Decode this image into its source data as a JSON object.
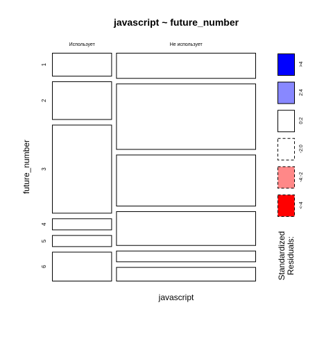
{
  "chart_data": {
    "type": "mosaic",
    "title": "javascript ~ future_number",
    "xlabel": "javascript",
    "ylabel": "future_number",
    "columns": [
      "Использует",
      "Не использует"
    ],
    "rows": [
      "1",
      "2",
      "3",
      "4",
      "5",
      "6"
    ],
    "column_shares": [
      0.3,
      0.7
    ],
    "row_shares": {
      "Использует": [
        0.08,
        0.13,
        0.3,
        0.04,
        0.04,
        0.1
      ],
      "Не использует": [
        0.09,
        0.23,
        0.18,
        0.12,
        0.04,
        0.05
      ]
    },
    "residual_category": {
      "Использует": [
        "0:-2",
        "0:-2",
        "0:2",
        "0:-2",
        "0:2",
        "0:2"
      ],
      "Не использует": [
        "0:2",
        "0:2",
        "0:-2",
        "0:2",
        "0:-2",
        "0:-2"
      ]
    },
    "legend": {
      "title_lines": [
        "Standardized",
        "Residuals:"
      ],
      "items": [
        {
          "label": ">4",
          "fill": "#0000ff",
          "dashed": false
        },
        {
          "label": "2:4",
          "fill": "#8888ff",
          "dashed": false
        },
        {
          "label": "0:2",
          "fill": "#ffffff",
          "dashed": false
        },
        {
          "label": "-2:0",
          "fill": "#ffffff",
          "dashed": true
        },
        {
          "label": "-4:-2",
          "fill": "#ff8888",
          "dashed": true
        },
        {
          "label": "<-4",
          "fill": "#ff0000",
          "dashed": true
        }
      ]
    }
  }
}
